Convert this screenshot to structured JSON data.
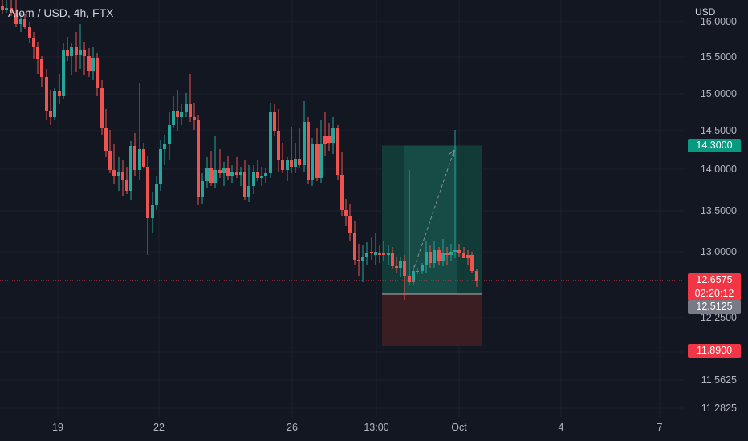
{
  "header": {
    "title": "Atom / USD, 4h, FTX",
    "currency": "USD"
  },
  "price_axis": {
    "ticks": [
      "16.0000",
      "15.5000",
      "15.0000",
      "14.5000",
      "14.0000",
      "13.5000",
      "13.0000",
      "12.2500",
      "11.5625",
      "11.2825"
    ],
    "badges": {
      "take_profit": "14.3000",
      "last_price": "12.6575",
      "countdown": "02:20:12",
      "entry": "12.5125",
      "stop_loss": "11.8900"
    }
  },
  "time_axis": {
    "labels": [
      "19",
      "22",
      "26",
      "13:00",
      "Oct",
      "4",
      "7"
    ]
  },
  "colors": {
    "background": "#131722",
    "up": "#26a69a",
    "down": "#ef5350",
    "profit_zone": "#123d3a",
    "loss_zone": "#3d1f23",
    "grid": "#1e2230"
  },
  "position_tool": {
    "type": "long",
    "entry": 12.5125,
    "take_profit": 14.3,
    "stop_loss": 11.89
  }
}
